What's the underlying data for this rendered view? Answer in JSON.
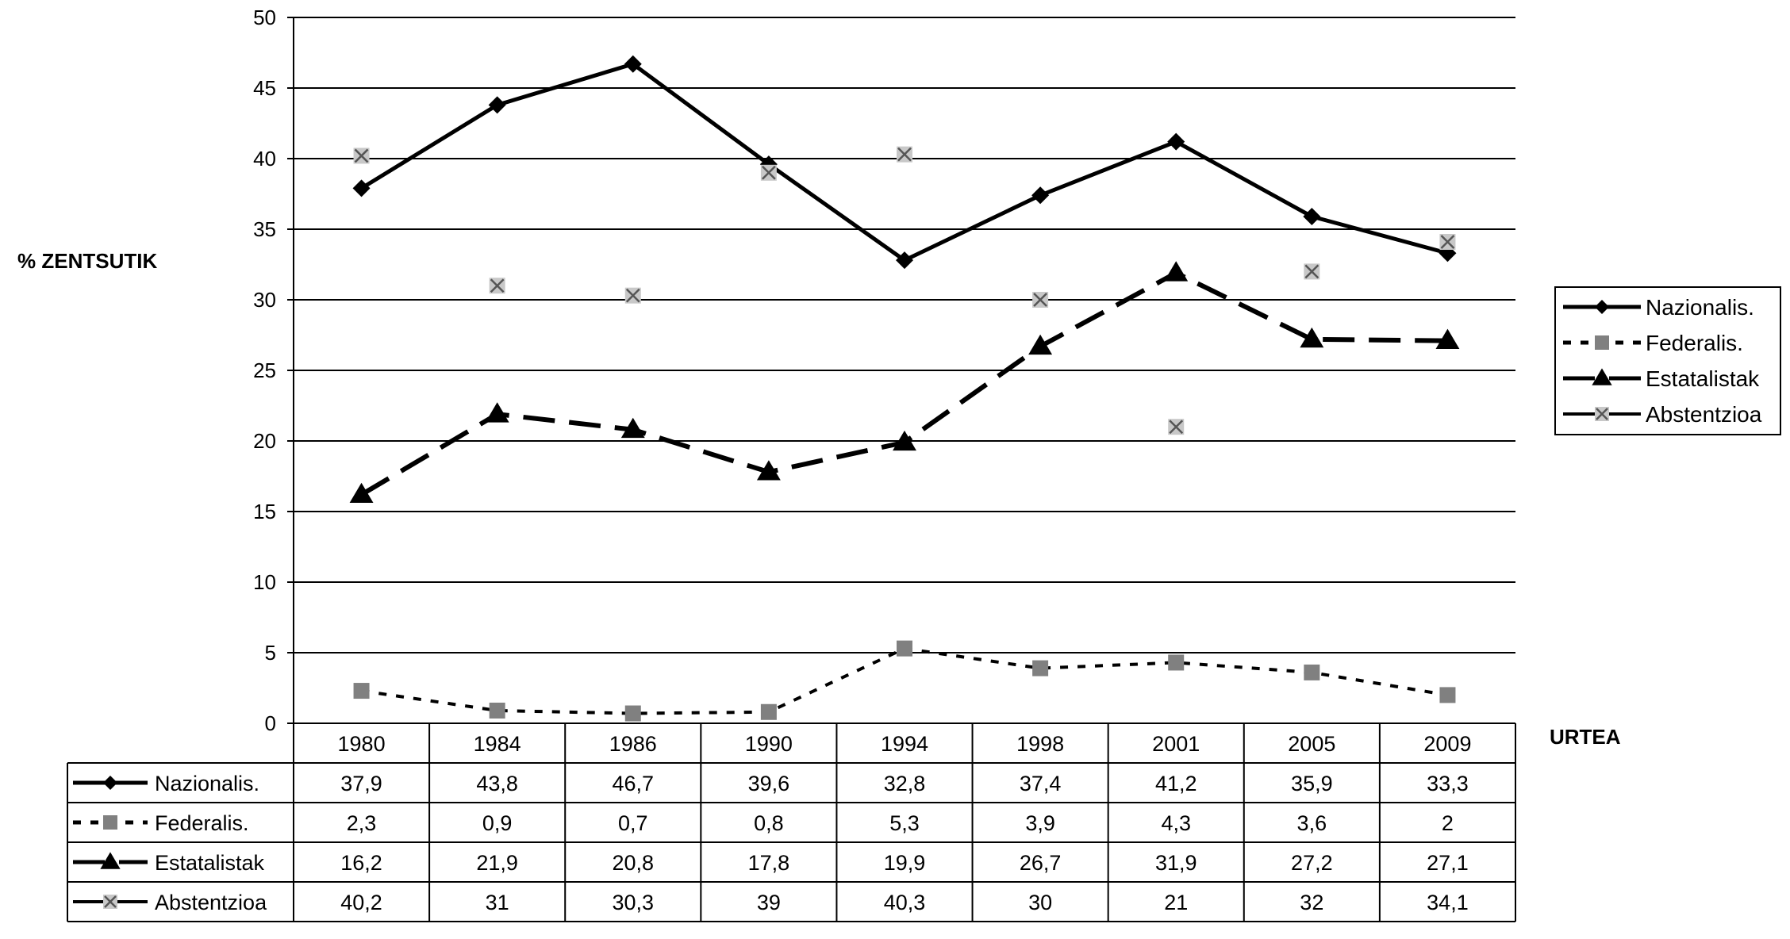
{
  "chart_data": {
    "type": "line",
    "title": "",
    "ylabel": "% ZENTSUTIK",
    "xlabel": "URTEA",
    "ylim": [
      0,
      50
    ],
    "yticks": [
      "0",
      "5",
      "10",
      "15",
      "20",
      "25",
      "30",
      "35",
      "40",
      "45",
      "50"
    ],
    "grid": true,
    "legend_position": "right",
    "categories": [
      "1980",
      "1984",
      "1986",
      "1990",
      "1994",
      "1998",
      "2001",
      "2005",
      "2009"
    ],
    "series": [
      {
        "name": "Nazionalis.",
        "marker": "diamond",
        "line": "solid",
        "color": "#000000",
        "values": [
          37.9,
          43.8,
          46.7,
          39.6,
          32.8,
          37.4,
          41.2,
          35.9,
          33.3
        ],
        "labels": [
          "37,9",
          "43,8",
          "46,7",
          "39,6",
          "32,8",
          "37,4",
          "41,2",
          "35,9",
          "33,3"
        ]
      },
      {
        "name": "Federalis.",
        "marker": "square",
        "line": "dotted",
        "color": "#808080",
        "values": [
          2.3,
          0.9,
          0.7,
          0.8,
          5.3,
          3.9,
          4.3,
          3.6,
          2
        ],
        "labels": [
          "2,3",
          "0,9",
          "0,7",
          "0,8",
          "5,3",
          "3,9",
          "4,3",
          "3,6",
          "2"
        ]
      },
      {
        "name": "Estatalistak",
        "marker": "triangle",
        "line": "dashed",
        "color": "#000000",
        "values": [
          16.2,
          21.9,
          20.8,
          17.8,
          19.9,
          26.7,
          31.9,
          27.2,
          27.1
        ],
        "labels": [
          "16,2",
          "21,9",
          "20,8",
          "17,8",
          "19,9",
          "26,7",
          "31,9",
          "27,2",
          "27,1"
        ]
      },
      {
        "name": "Abstentzioa",
        "marker": "x-square",
        "line": "none",
        "color": "#b0b0b0",
        "values": [
          40.2,
          31,
          30.3,
          39,
          40.3,
          30,
          21,
          32,
          34.1
        ],
        "labels": [
          "40,2",
          "31",
          "30,3",
          "39",
          "40,3",
          "30",
          "21",
          "32",
          "34,1"
        ]
      }
    ]
  }
}
